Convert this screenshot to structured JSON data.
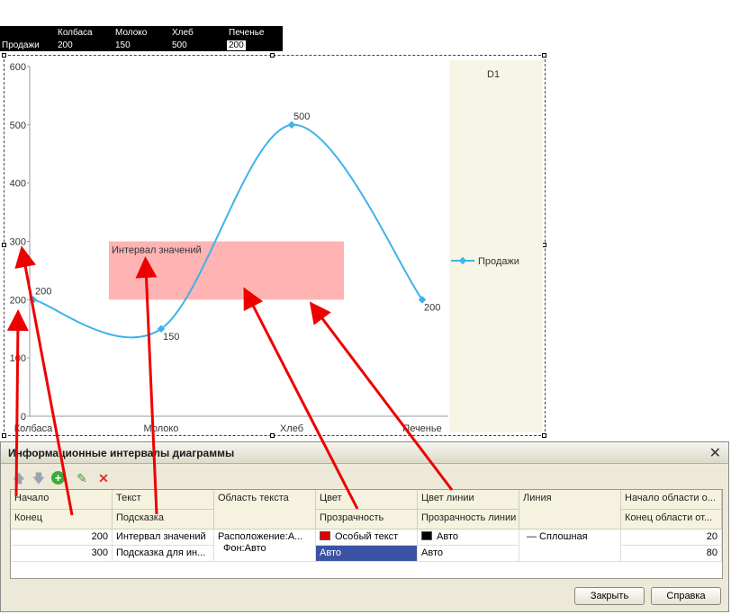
{
  "source_table": {
    "columns": [
      "Колбаса",
      "Молоко",
      "Хлеб",
      "Печенье"
    ],
    "row_label": "Продажи",
    "values": [
      "200",
      "150",
      "500",
      "200"
    ]
  },
  "chart_data": {
    "type": "line",
    "categories": [
      "Колбаса",
      "Молоко",
      "Хлеб",
      "Печенье"
    ],
    "series": [
      {
        "name": "Продажи",
        "values": [
          200,
          150,
          500,
          200
        ],
        "color": "#3fb2ea"
      }
    ],
    "ylim": [
      0,
      600
    ],
    "y_ticks": [
      "0",
      "100",
      "200",
      "300",
      "400",
      "500",
      "600"
    ],
    "data_labels": [
      "200",
      "150",
      "500",
      "200"
    ],
    "legend_title": "D1",
    "legend_position": "right",
    "interval": {
      "start": 200,
      "end": 300,
      "text": "Интервал значений",
      "color": "#ffb3b3"
    }
  },
  "dialog": {
    "title": "Информационные интервалы диаграммы",
    "close_icon": "✕",
    "toolbar": {
      "move_up": "🡅",
      "move_down": "🡇",
      "add": "+",
      "edit": "✎",
      "delete": "✕"
    },
    "headers": {
      "start": "Начало",
      "end": "Конец",
      "text": "Текст",
      "tooltip": "Подсказка",
      "text_area": "Область текста",
      "color": "Цвет",
      "transparency": "Прозрачность",
      "line_color": "Цвет линии",
      "line_transparency": "Прозрачность линии",
      "line": "Линия",
      "area_start": "Начало области о...",
      "area_end": "Конец области от..."
    },
    "row": {
      "start": "200",
      "end": "300",
      "text": "Интервал значений",
      "tooltip": "Подсказка для ин...",
      "text_area_position": "Расположение:А...",
      "text_area_background": "Фон:Авто",
      "color": "Особый текст",
      "color_hex": "#e00000",
      "transparency": "Авто",
      "line_color": "Авто",
      "line_color_hex": "#000000",
      "line_transparency": "Авто",
      "line": "— Сплошная",
      "area_start": "20",
      "area_end": "80"
    },
    "buttons": {
      "close": "Закрыть",
      "help": "Справка"
    }
  }
}
